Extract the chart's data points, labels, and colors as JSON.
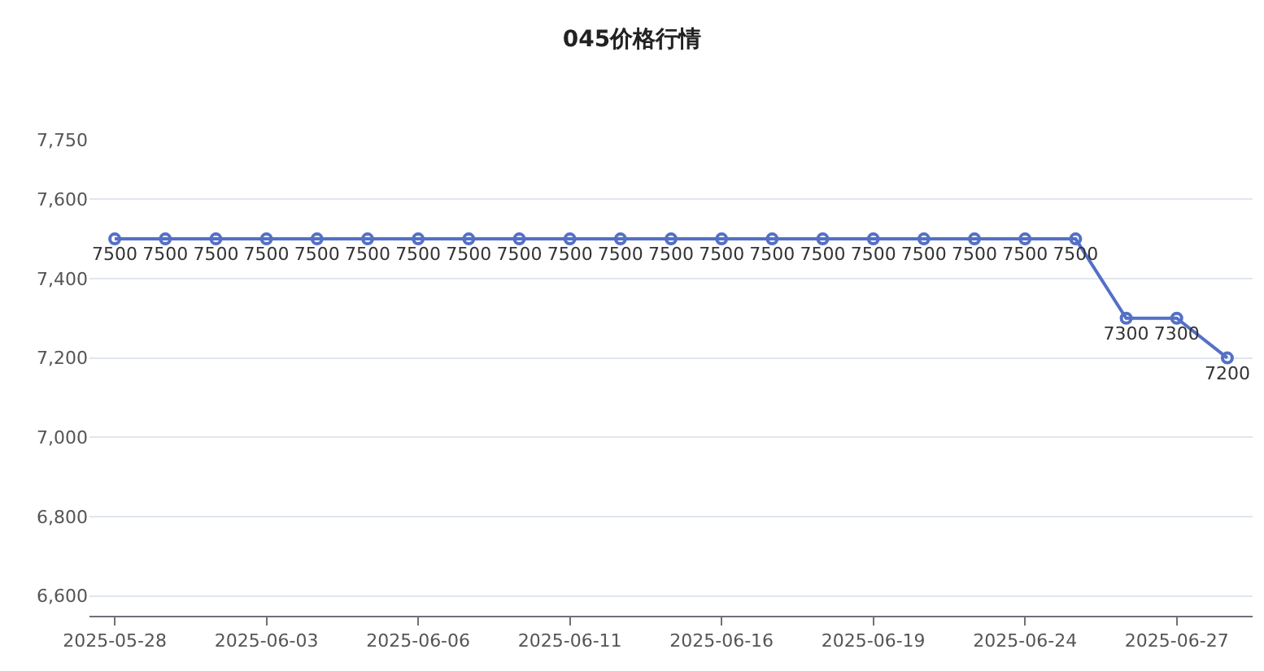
{
  "chart_data": {
    "type": "line",
    "title": "045价格行情",
    "categories": [
      "2025-05-28",
      null,
      null,
      "2025-06-03",
      null,
      null,
      "2025-06-06",
      null,
      null,
      "2025-06-11",
      null,
      null,
      "2025-06-16",
      null,
      null,
      "2025-06-19",
      null,
      null,
      "2025-06-24",
      null,
      null,
      "2025-06-27",
      null
    ],
    "series": [
      {
        "color": "#5470c6",
        "values": [
          7500,
          7500,
          7500,
          7500,
          7500,
          7500,
          7500,
          7500,
          7500,
          7500,
          7500,
          7500,
          7500,
          7500,
          7500,
          7500,
          7500,
          7500,
          7500,
          7500,
          7300,
          7300,
          7200
        ]
      }
    ],
    "ylim": [
      6550,
      7750
    ],
    "yticks": [
      {
        "value": 6600,
        "label": "6,600"
      },
      {
        "value": 6800,
        "label": "6,800"
      },
      {
        "value": 7000,
        "label": "7,000"
      },
      {
        "value": 7200,
        "label": "7,200"
      },
      {
        "value": 7400,
        "label": "7,400"
      },
      {
        "value": 7600,
        "label": "7,600"
      },
      {
        "value": 7750,
        "label": "7,750"
      }
    ],
    "grid": "y",
    "marker": "circle",
    "line_style": "solid",
    "data_labels": true,
    "legend": false
  }
}
